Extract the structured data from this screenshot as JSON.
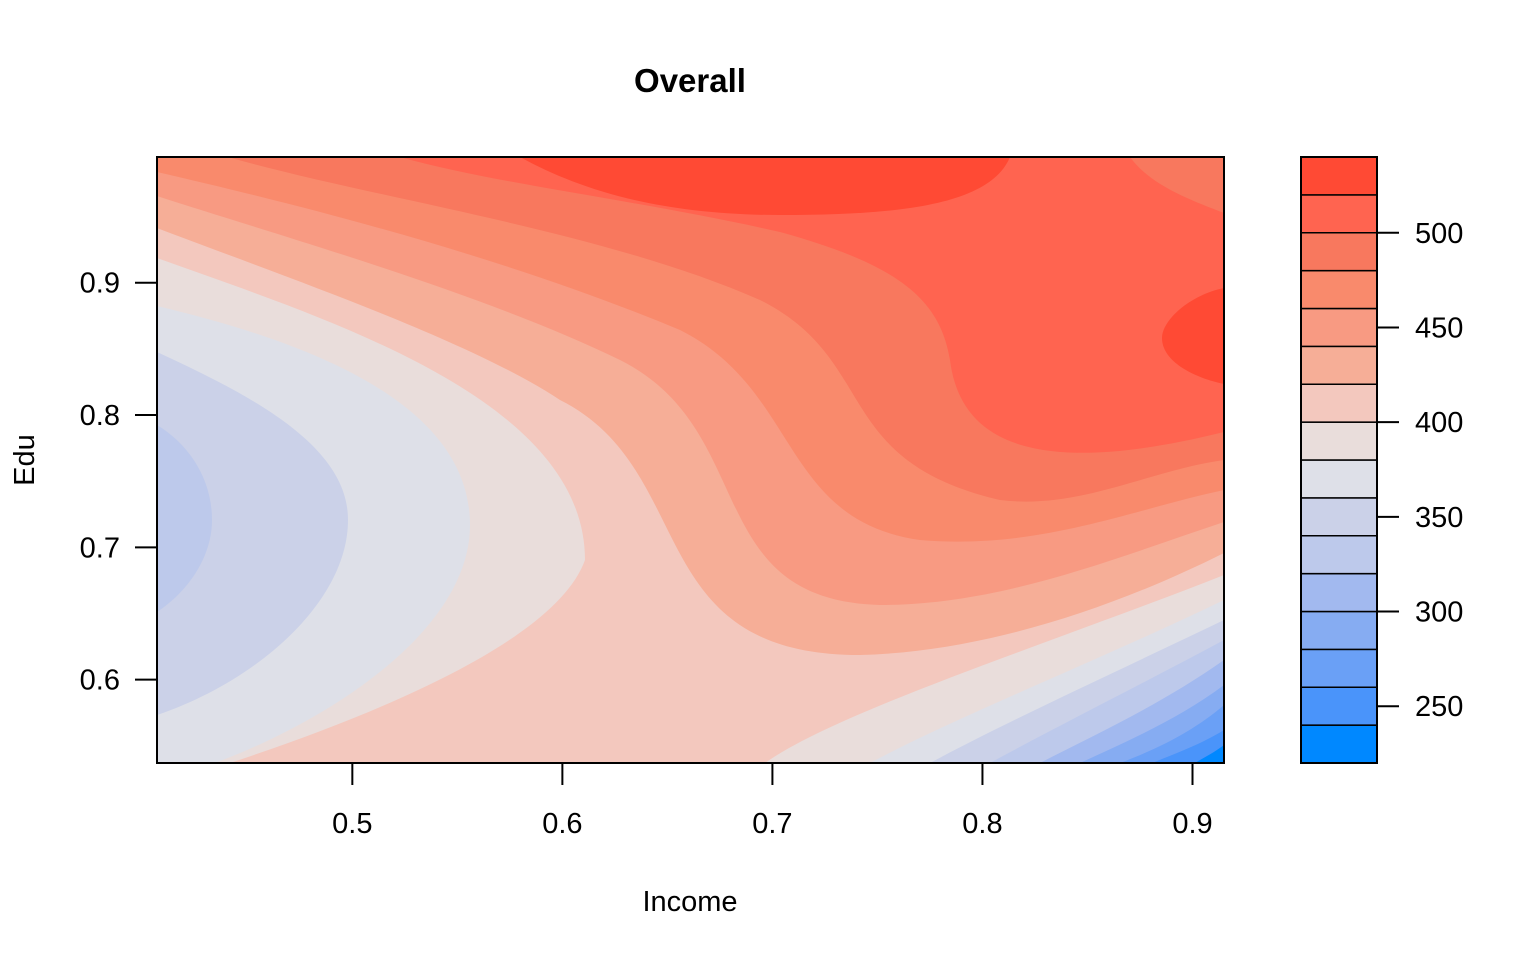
{
  "chart_data": {
    "type": "filled-contour",
    "title": "Overall",
    "xlabel": "Income",
    "ylabel": "Edu",
    "xlim": [
      0.407,
      0.915
    ],
    "ylim": [
      0.537,
      0.995
    ],
    "xticks": [
      "0.5",
      "0.6",
      "0.7",
      "0.8",
      "0.9"
    ],
    "yticks": [
      "0.6",
      "0.7",
      "0.8",
      "0.9"
    ],
    "colorbar": {
      "range": [
        220,
        540
      ],
      "levels": [
        220,
        240,
        260,
        280,
        300,
        320,
        340,
        360,
        380,
        400,
        420,
        440,
        460,
        480,
        500,
        520,
        540
      ],
      "ticks": [
        "250",
        "300",
        "350",
        "400",
        "450",
        "500"
      ],
      "colors": [
        "#0088FF",
        "#4A94FA",
        "#6AA0F6",
        "#86ACF2",
        "#A2B9EF",
        "#BDC9EB",
        "#CBD1E8",
        "#DEE0E8",
        "#E9DDDB",
        "#F3C8BE",
        "#F6AE97",
        "#F89A82",
        "#F98A6C",
        "#F8785E",
        "#FF6450",
        "#FF4A34"
      ]
    },
    "regions": [
      {
        "level": "360-380",
        "color": "#DEE0E8",
        "description": "left background band"
      },
      {
        "level": "340-360",
        "color": "#CBD1E8",
        "description": "left low-value lobe"
      },
      {
        "level": "320-340",
        "color": "#BDC9EB",
        "description": "left minimum near Edu 0.7"
      },
      {
        "level": "480-540",
        "color": "#FF4A34",
        "description": "top ridge near Edu 0.97 and right peak near Income 0.9, Edu 0.86"
      },
      {
        "level": "220-240",
        "color": "#0088FF",
        "description": "bottom-right minimum near Income 0.91, Edu 0.55"
      }
    ]
  }
}
